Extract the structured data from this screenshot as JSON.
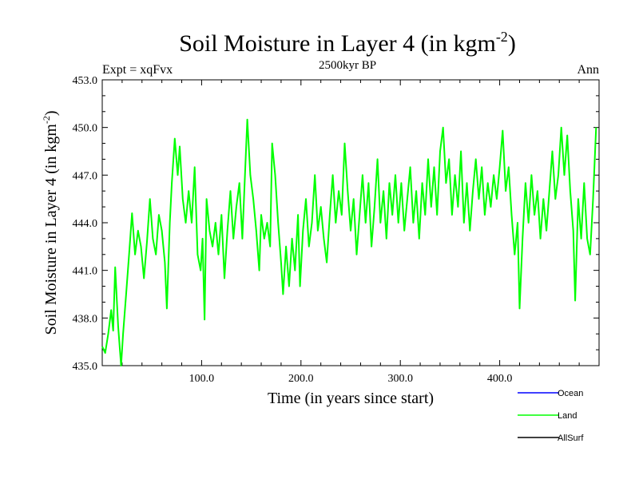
{
  "chart_data": {
    "type": "line",
    "title": "Soil Moisture in Layer 4 (in kgm",
    "title_superscript": "-2",
    "title_close": ")",
    "subtitle_left": "Expt = xqFvx",
    "subtitle_center": "2500kyr BP",
    "subtitle_right": "Ann",
    "xlabel": "Time (in years since start)",
    "ylabel": "Soil Moisture in Layer 4 (in kgm",
    "ylabel_superscript": "-2",
    "ylabel_close": ")",
    "xlim": [
      0,
      500
    ],
    "ylim": [
      435.0,
      453.0
    ],
    "x_ticks": [
      100,
      200,
      300,
      400
    ],
    "x_tick_labels": [
      "100.0",
      "200.0",
      "300.0",
      "400.0"
    ],
    "y_ticks": [
      435,
      438,
      441,
      444,
      447,
      450,
      453
    ],
    "y_tick_labels": [
      "435.0",
      "438.0",
      "441.0",
      "444.0",
      "447.0",
      "450.0",
      "453.0"
    ],
    "legend": [
      {
        "name": "Ocean",
        "color": "#0000ff"
      },
      {
        "name": "Land",
        "color": "#00ff00"
      },
      {
        "name": "AllSurf",
        "color": "#000000"
      }
    ],
    "series": [
      {
        "name": "Land",
        "color": "#00ff00",
        "points": [
          [
            0,
            436.2
          ],
          [
            3,
            435.8
          ],
          [
            6,
            437.0
          ],
          [
            9,
            438.5
          ],
          [
            11,
            437.2
          ],
          [
            13,
            441.2
          ],
          [
            16,
            437.5
          ],
          [
            19,
            435.0
          ],
          [
            21,
            437.0
          ],
          [
            24,
            439.5
          ],
          [
            27,
            442.0
          ],
          [
            30,
            444.6
          ],
          [
            33,
            442.0
          ],
          [
            36,
            443.5
          ],
          [
            39,
            442.5
          ],
          [
            42,
            440.5
          ],
          [
            45,
            442.8
          ],
          [
            48,
            445.5
          ],
          [
            51,
            443.0
          ],
          [
            54,
            442.0
          ],
          [
            57,
            444.5
          ],
          [
            60,
            443.5
          ],
          [
            63,
            441.5
          ],
          [
            65,
            438.6
          ],
          [
            68,
            444.0
          ],
          [
            70,
            446.5
          ],
          [
            73,
            449.3
          ],
          [
            76,
            447.0
          ],
          [
            78,
            448.8
          ],
          [
            81,
            445.5
          ],
          [
            84,
            444.0
          ],
          [
            87,
            446.0
          ],
          [
            90,
            444.0
          ],
          [
            93,
            447.5
          ],
          [
            96,
            442.0
          ],
          [
            99,
            441.0
          ],
          [
            101,
            443.0
          ],
          [
            103,
            437.9
          ],
          [
            105,
            445.5
          ],
          [
            108,
            443.5
          ],
          [
            111,
            442.5
          ],
          [
            114,
            444.0
          ],
          [
            117,
            442.0
          ],
          [
            120,
            444.5
          ],
          [
            123,
            440.5
          ],
          [
            126,
            443.5
          ],
          [
            129,
            446.0
          ],
          [
            132,
            443.0
          ],
          [
            135,
            445.0
          ],
          [
            138,
            446.5
          ],
          [
            141,
            443.0
          ],
          [
            144,
            447.5
          ],
          [
            146,
            450.5
          ],
          [
            149,
            447.0
          ],
          [
            152,
            445.5
          ],
          [
            155,
            443.5
          ],
          [
            158,
            441.0
          ],
          [
            160,
            444.5
          ],
          [
            163,
            443.0
          ],
          [
            166,
            444.0
          ],
          [
            169,
            442.5
          ],
          [
            171,
            449.0
          ],
          [
            174,
            447.0
          ],
          [
            177,
            444.0
          ],
          [
            180,
            441.5
          ],
          [
            182,
            439.5
          ],
          [
            185,
            442.5
          ],
          [
            188,
            440.0
          ],
          [
            191,
            443.0
          ],
          [
            194,
            441.0
          ],
          [
            197,
            444.5
          ],
          [
            199,
            440.0
          ],
          [
            202,
            443.5
          ],
          [
            205,
            445.5
          ],
          [
            208,
            442.5
          ],
          [
            211,
            444.0
          ],
          [
            214,
            447.0
          ],
          [
            217,
            443.5
          ],
          [
            220,
            445.0
          ],
          [
            223,
            443.0
          ],
          [
            226,
            441.5
          ],
          [
            229,
            444.5
          ],
          [
            232,
            447.0
          ],
          [
            235,
            444.0
          ],
          [
            238,
            446.0
          ],
          [
            241,
            444.5
          ],
          [
            244,
            449.0
          ],
          [
            247,
            446.0
          ],
          [
            250,
            443.5
          ],
          [
            253,
            445.5
          ],
          [
            256,
            442.0
          ],
          [
            259,
            444.5
          ],
          [
            262,
            447.0
          ],
          [
            265,
            444.0
          ],
          [
            268,
            446.5
          ],
          [
            271,
            442.5
          ],
          [
            274,
            445.0
          ],
          [
            277,
            448.0
          ],
          [
            280,
            444.0
          ],
          [
            283,
            446.0
          ],
          [
            286,
            443.0
          ],
          [
            289,
            446.5
          ],
          [
            292,
            444.5
          ],
          [
            295,
            447.0
          ],
          [
            298,
            444.0
          ],
          [
            301,
            446.5
          ],
          [
            304,
            443.5
          ],
          [
            307,
            445.5
          ],
          [
            310,
            447.5
          ],
          [
            313,
            444.0
          ],
          [
            316,
            446.0
          ],
          [
            319,
            443.0
          ],
          [
            322,
            446.5
          ],
          [
            325,
            444.5
          ],
          [
            328,
            448.0
          ],
          [
            331,
            445.0
          ],
          [
            334,
            447.5
          ],
          [
            337,
            444.5
          ],
          [
            340,
            448.5
          ],
          [
            343,
            450.0
          ],
          [
            346,
            446.5
          ],
          [
            349,
            448.0
          ],
          [
            352,
            444.5
          ],
          [
            355,
            447.0
          ],
          [
            358,
            445.0
          ],
          [
            361,
            448.5
          ],
          [
            364,
            444.0
          ],
          [
            367,
            446.5
          ],
          [
            370,
            443.5
          ],
          [
            373,
            446.0
          ],
          [
            376,
            448.0
          ],
          [
            379,
            445.5
          ],
          [
            382,
            447.5
          ],
          [
            385,
            444.5
          ],
          [
            388,
            446.5
          ],
          [
            391,
            445.0
          ],
          [
            394,
            447.0
          ],
          [
            397,
            445.5
          ],
          [
            400,
            447.5
          ],
          [
            403,
            449.8
          ],
          [
            406,
            446.0
          ],
          [
            409,
            447.5
          ],
          [
            412,
            444.5
          ],
          [
            415,
            442.0
          ],
          [
            418,
            444.0
          ],
          [
            420,
            438.6
          ],
          [
            423,
            443.0
          ],
          [
            426,
            446.5
          ],
          [
            429,
            444.0
          ],
          [
            432,
            447.0
          ],
          [
            435,
            444.5
          ],
          [
            438,
            446.0
          ],
          [
            441,
            443.0
          ],
          [
            444,
            445.5
          ],
          [
            447,
            443.5
          ],
          [
            450,
            446.0
          ],
          [
            453,
            448.5
          ],
          [
            456,
            445.5
          ],
          [
            459,
            447.0
          ],
          [
            462,
            450.0
          ],
          [
            465,
            447.0
          ],
          [
            468,
            449.5
          ],
          [
            471,
            446.0
          ],
          [
            474,
            443.5
          ],
          [
            476,
            439.1
          ],
          [
            479,
            445.5
          ],
          [
            482,
            443.0
          ],
          [
            485,
            446.5
          ],
          [
            488,
            443.0
          ],
          [
            491,
            442.0
          ],
          [
            494,
            445.5
          ],
          [
            497,
            450.0
          ]
        ]
      }
    ]
  }
}
